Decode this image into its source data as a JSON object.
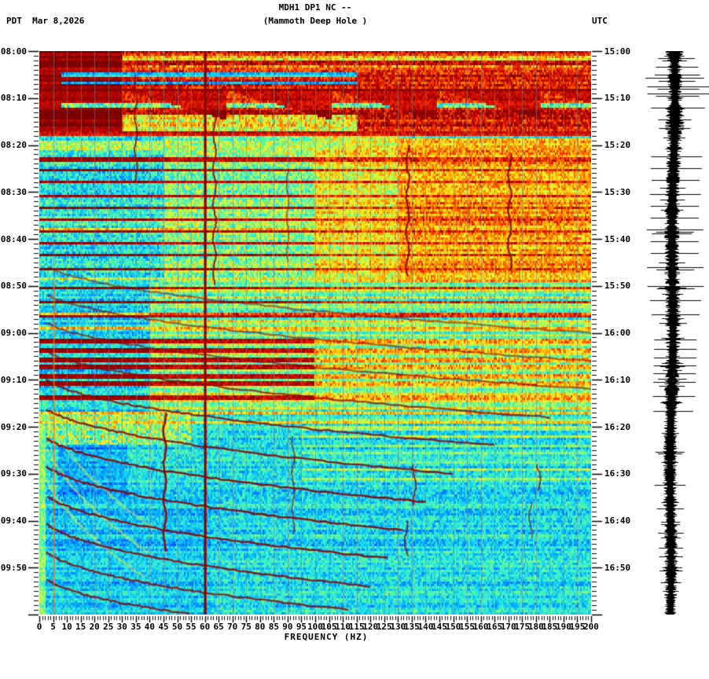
{
  "header": {
    "title": "MDH1 DP1 NC --",
    "subtitle": "(Mammoth Deep Hole )",
    "left_label": "PDT  Mar 8,2026",
    "right_label": "UTC"
  },
  "chart_data": {
    "type": "heatmap",
    "subtype": "seismic-spectrogram-with-helicorder",
    "title": "MDH1 DP1 NC --",
    "subtitle": "(Mammoth Deep Hole )",
    "station": "MDH1 DP1 NC",
    "site_name": "Mammoth Deep Hole",
    "date": "Mar 8,2026",
    "time_span_minutes": 120,
    "x_axis": {
      "label": "FREQUENCY (HZ)",
      "min_hz": 0,
      "max_hz": 200,
      "major_tick_hz": 5,
      "minor_tick_hz": 1,
      "tick_labels": [
        "0",
        "5",
        "10",
        "15",
        "20",
        "25",
        "30",
        "35",
        "40",
        "45",
        "50",
        "55",
        "60",
        "65",
        "70",
        "75",
        "80",
        "85",
        "90",
        "95",
        "100",
        "105",
        "110",
        "115",
        "120",
        "125",
        "130",
        "135",
        "140",
        "145",
        "150",
        "155",
        "160",
        "165",
        "170",
        "175",
        "180",
        "185",
        "190",
        "195",
        "200"
      ]
    },
    "left_axis": {
      "timezone": "PDT",
      "major_tick_minutes": 10,
      "minor_tick_minutes": 1,
      "tick_labels": [
        "08:00",
        "08:10",
        "08:20",
        "08:30",
        "08:40",
        "08:50",
        "09:00",
        "09:10",
        "09:20",
        "09:30",
        "09:40",
        "09:50"
      ]
    },
    "right_axis": {
      "timezone": "UTC",
      "major_tick_minutes": 10,
      "minor_tick_minutes": 1,
      "tick_labels": [
        "15:00",
        "15:10",
        "15:20",
        "15:30",
        "15:40",
        "15:50",
        "16:00",
        "16:10",
        "16:20",
        "16:30",
        "16:40",
        "16:50"
      ]
    },
    "palette": {
      "colormap": "jet",
      "page_background": "#ffffff",
      "grid_line": "#76828e",
      "mains_line": "#8c0000",
      "event_band": "#8c0000",
      "low_freq_line": "#e17d19",
      "trace_color": "#000000",
      "tick_color": "#000000"
    },
    "features": {
      "grid_lines_every_hz": 5,
      "mains_hum_line_hz": 60,
      "low_freq_line": {
        "hz": 5.3,
        "start_minute": 49
      },
      "top_zone": {
        "t_end": 17,
        "wedge_start": 8.2,
        "wedge_depth": 6.5,
        "wedge_period_hz": 38
      },
      "background_regions": [
        [
          0,
          120,
          0,
          200,
          0.36,
          0.13
        ],
        [
          17,
          49,
          0,
          45,
          0.37,
          0.14
        ],
        [
          17,
          49,
          45,
          100,
          0.5,
          0.16
        ],
        [
          17,
          49,
          100,
          130,
          0.64,
          0.14
        ],
        [
          18.5,
          49,
          130,
          200,
          0.73,
          0.12
        ],
        [
          19,
          21.2,
          0,
          110,
          0.56,
          0.15
        ],
        [
          49,
          77,
          0,
          40,
          0.32,
          0.12
        ],
        [
          49,
          77,
          40,
          200,
          0.43,
          0.13
        ],
        [
          77,
          120,
          0,
          200,
          0.34,
          0.12
        ],
        [
          77,
          84,
          3,
          55,
          0.5,
          0.2
        ],
        [
          84,
          110,
          7,
          32,
          0.25,
          0.09
        ],
        [
          95,
          120,
          0,
          62,
          0.3,
          0.1
        ],
        [
          77,
          120,
          0,
          2.5,
          0.5,
          0.1
        ],
        [
          0,
          17,
          0,
          200,
          0.88,
          0.1
        ],
        [
          0,
          17,
          0,
          30,
          0.97,
          0.03
        ],
        [
          1,
          2.2,
          30,
          200,
          0.66,
          0.15
        ],
        [
          2.8,
          3.6,
          30,
          200,
          0.72,
          0.15
        ],
        [
          4.3,
          5.4,
          8,
          115,
          0.3,
          0.1
        ],
        [
          6.3,
          7.2,
          8,
          115,
          0.3,
          0.1
        ],
        [
          10.8,
          12.2,
          8,
          200,
          0.5,
          0.2
        ],
        [
          12.2,
          17,
          0,
          30,
          0.97,
          0.03
        ],
        [
          13.5,
          17,
          30,
          115,
          0.62,
          0.18
        ],
        [
          16.9,
          18.3,
          0,
          200,
          0.92,
          0.06
        ]
      ],
      "yellow_rows": [
        {
          "f_start": 40,
          "bump": 0.17,
          "minutes": [
            50.7,
            52.3,
            54.3,
            55.9,
            57.7,
            59.3,
            60.7,
            62.3,
            64.3,
            66.1,
            67.9,
            69.5,
            71.3,
            72.9,
            74.7,
            76.1
          ]
        },
        {
          "f_start": 95,
          "bump": 0.15,
          "minutes": [
            78.6,
            80.3,
            82.1,
            83.9,
            85.7,
            87.5,
            89.3,
            91.1
          ]
        }
      ],
      "orange_row_minutes": [
        37.6,
        48,
        55.7,
        58.8,
        76.7,
        79
      ],
      "event_band_minutes": [
        22.5,
        25,
        27.5,
        30.5,
        33,
        35.5,
        38,
        40.5,
        43,
        46,
        50,
        53,
        56,
        61.5,
        63.5,
        65.2,
        67,
        68.7,
        70.5,
        73.5
      ],
      "tremor_traces": [
        [
          35,
          5,
          28,
          1.8,
          1.5,
          0.85
        ],
        [
          63.5,
          13,
          50,
          2.0,
          2.0,
          0.85
        ],
        [
          90,
          25,
          45,
          1.5,
          1.5,
          0.6
        ],
        [
          133.5,
          20,
          48,
          2.2,
          2.0,
          0.9
        ],
        [
          170.5,
          22,
          47,
          2.2,
          2.0,
          0.9
        ],
        [
          45.5,
          77,
          107,
          2.4,
          1.8,
          0.95
        ],
        [
          92,
          82,
          103,
          1.6,
          1.5,
          0.7
        ],
        [
          136,
          88,
          97,
          1.8,
          2.0,
          0.8
        ],
        [
          133,
          100,
          108,
          1.8,
          2.0,
          0.8
        ],
        [
          181,
          88,
          94,
          1.8,
          2.5,
          0.75
        ],
        [
          178,
          96,
          104,
          1.6,
          2.0,
          0.65
        ]
      ],
      "gliding_chirps": [
        [
          44,
          16,
          200,
          2.0,
          0.5
        ],
        [
          50,
          16,
          200,
          2.0,
          0.55
        ],
        [
          56,
          16,
          200,
          2.0,
          0.6
        ],
        [
          62,
          16,
          185,
          2.0,
          0.7
        ],
        [
          68,
          16,
          165,
          2.05,
          0.8
        ],
        [
          74,
          16,
          150,
          2.05,
          0.85
        ],
        [
          80,
          16,
          140,
          2.1,
          0.9
        ],
        [
          86,
          16,
          132,
          2.1,
          0.9
        ],
        [
          92,
          16,
          126,
          2.15,
          0.9
        ],
        [
          98,
          16,
          120,
          2.15,
          0.85
        ],
        [
          104,
          15,
          112,
          2.2,
          0.8
        ],
        [
          110,
          13,
          100,
          2.2,
          0.8
        ]
      ],
      "faint_chirps": [
        [
          72,
          30,
          42,
          1.7,
          0.45
        ],
        [
          79,
          28,
          40,
          1.7,
          0.5
        ],
        [
          86,
          26,
          38,
          1.7,
          0.5
        ]
      ],
      "faint_chirp_color": "#d8ef52"
    },
    "helicorder": {
      "spikes": [
        {
          "m": 1.5,
          "a": 26
        },
        {
          "m": 3.3,
          "a": 30
        },
        {
          "m": 5,
          "a": 32
        },
        {
          "m": 6.3,
          "a": 26
        },
        {
          "m": 7.5,
          "a": 44
        },
        {
          "m": 9,
          "a": 44
        },
        {
          "m": 9.6,
          "a": 30
        },
        {
          "m": 12,
          "a": 38
        },
        {
          "m": 22.5,
          "a": 36
        },
        {
          "m": 25,
          "a": 36
        },
        {
          "m": 27.5,
          "a": 34
        },
        {
          "m": 30.5,
          "a": 36
        },
        {
          "m": 33,
          "a": 34
        },
        {
          "m": 35.5,
          "a": 34
        },
        {
          "m": 38,
          "a": 40
        },
        {
          "m": 40.5,
          "a": 34
        },
        {
          "m": 43,
          "a": 34
        },
        {
          "m": 46,
          "a": 40
        },
        {
          "m": 50,
          "a": 40
        },
        {
          "m": 53,
          "a": 36
        },
        {
          "m": 56,
          "a": 34
        },
        {
          "m": 61.5,
          "a": 30
        },
        {
          "m": 63.5,
          "a": 30
        },
        {
          "m": 65.2,
          "a": 30
        },
        {
          "m": 67,
          "a": 30
        },
        {
          "m": 68.7,
          "a": 30
        },
        {
          "m": 70.5,
          "a": 30
        },
        {
          "m": 73.5,
          "a": 30
        },
        {
          "m": 76.7,
          "a": 28
        },
        {
          "m": 110,
          "a": 14
        }
      ]
    }
  }
}
